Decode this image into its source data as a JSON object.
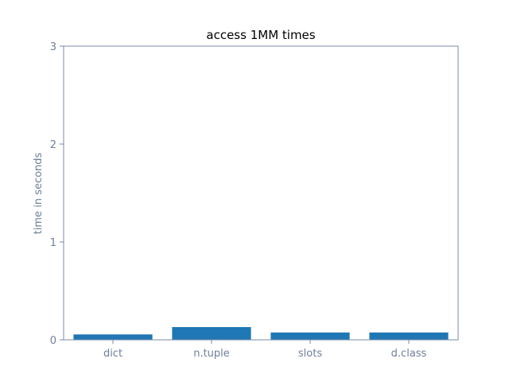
{
  "chart_data": {
    "type": "bar",
    "title": "access 1MM times",
    "xlabel": "",
    "ylabel": "time in seconds",
    "categories": [
      "dict",
      "n.tuple",
      "slots",
      "d.class"
    ],
    "values": [
      0.055,
      0.13,
      0.075,
      0.075
    ],
    "ylim": [
      0,
      3
    ],
    "yticks": [
      0,
      1,
      2,
      3
    ],
    "grid": false,
    "colors": {
      "bar": "#1f77b4",
      "axes": "#7a8aa8",
      "tick_text": "#6e7f9a",
      "title": "#000000"
    }
  }
}
